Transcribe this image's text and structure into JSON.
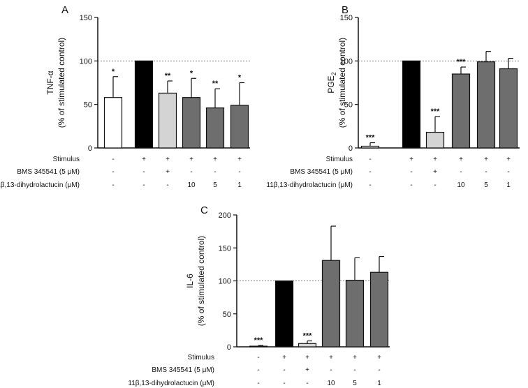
{
  "figure": {
    "row_labels": [
      "Stimulus",
      "BMS 345541 (5 μM)",
      "11β,13-dihydrolactucin (μM)"
    ],
    "conditions": [
      [
        "-",
        "+",
        "+",
        "+",
        "+",
        "+"
      ],
      [
        "-",
        "-",
        "+",
        "-",
        "-",
        "-"
      ],
      [
        "-",
        "-",
        "-",
        "10",
        "5",
        "1"
      ]
    ],
    "reference_line": 100,
    "colors": {
      "unstimulated": "#ffffff",
      "stimulated": "#000000",
      "bms": "#d4d4d4",
      "dihydrolactucin": "#6e6e6e",
      "reference_line": "#777777",
      "axis": "#111111"
    }
  },
  "chart_data": [
    {
      "panel": "A",
      "type": "bar",
      "ylabel": "TNF-α",
      "ylabel_unit": "(% of stimulated control)",
      "ylim": [
        0,
        150
      ],
      "yticks": [
        "0",
        "50",
        "100",
        "150"
      ],
      "categories": [
        "Unstimulated",
        "Stimulated control",
        "BMS 345541 5 μM",
        "11β,13-dihydrolactucin 10 μM",
        "11β,13-dihydrolactucin 5 μM",
        "11β,13-dihydrolactucin 1 μM"
      ],
      "values": [
        58,
        100,
        63,
        58,
        46,
        49
      ],
      "errors": [
        24,
        0,
        14,
        22,
        22,
        26
      ],
      "significance": [
        "*",
        "",
        "**",
        "*",
        "**",
        "*"
      ]
    },
    {
      "panel": "B",
      "type": "bar",
      "ylabel": "PGE",
      "ylabel_sub": "2",
      "ylabel_unit": "(% of stimulated control)",
      "ylim": [
        0,
        150
      ],
      "yticks": [
        "0",
        "50",
        "100",
        "150"
      ],
      "categories": [
        "Unstimulated",
        "Stimulated control",
        "BMS 345541 5 μM",
        "11β,13-dihydrolactucin 10 μM",
        "11β,13-dihydrolactucin 5 μM",
        "11β,13-dihydrolactucin 1 μM"
      ],
      "values": [
        2,
        100,
        18,
        85,
        99,
        91
      ],
      "errors": [
        4,
        0,
        18,
        8,
        12,
        12
      ],
      "significance": [
        "***",
        "",
        "***",
        "***",
        "",
        ""
      ]
    },
    {
      "panel": "C",
      "type": "bar",
      "ylabel": "IL-6",
      "ylabel_unit": "(% of stimulated control)",
      "ylim": [
        0,
        200
      ],
      "yticks": [
        "0",
        "50",
        "100",
        "150",
        "200"
      ],
      "categories": [
        "Unstimulated",
        "Stimulated control",
        "BMS 345541 5 μM",
        "11β,13-dihydrolactucin 10 μM",
        "11β,13-dihydrolactucin 5 μM",
        "11β,13-dihydrolactucin 1 μM"
      ],
      "values": [
        1,
        100,
        5,
        131,
        101,
        113
      ],
      "errors": [
        1,
        0,
        4,
        52,
        34,
        24
      ],
      "significance": [
        "***",
        "",
        "***",
        "",
        "",
        ""
      ]
    }
  ]
}
